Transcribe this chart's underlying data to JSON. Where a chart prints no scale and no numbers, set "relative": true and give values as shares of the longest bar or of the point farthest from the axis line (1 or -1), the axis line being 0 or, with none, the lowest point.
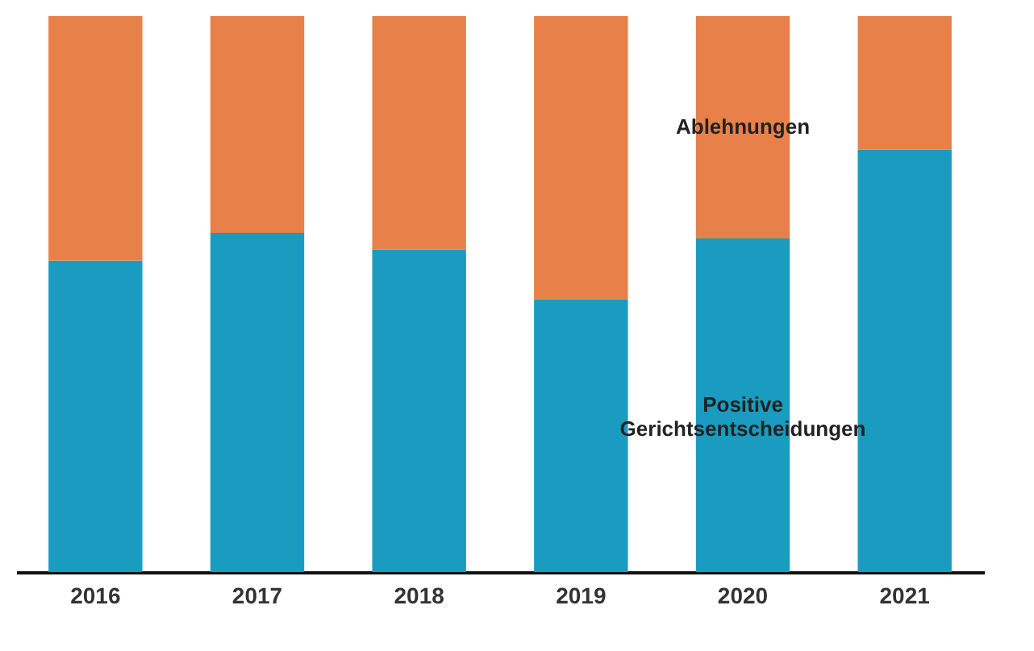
{
  "chart_data": {
    "type": "bar",
    "stacked": true,
    "relative": true,
    "legend": false,
    "categories": [
      "2016",
      "2017",
      "2018",
      "2019",
      "2020",
      "2021"
    ],
    "series": [
      {
        "name": "Positive Gerichtsentscheidungen",
        "color": "#1a9bc0",
        "values": [
          0.56,
          0.61,
          0.58,
          0.49,
          0.6,
          0.76
        ]
      },
      {
        "name": "Ablehnungen",
        "color": "#e8804a",
        "values": [
          0.44,
          0.39,
          0.42,
          0.51,
          0.4,
          0.24
        ]
      }
    ]
  }
}
